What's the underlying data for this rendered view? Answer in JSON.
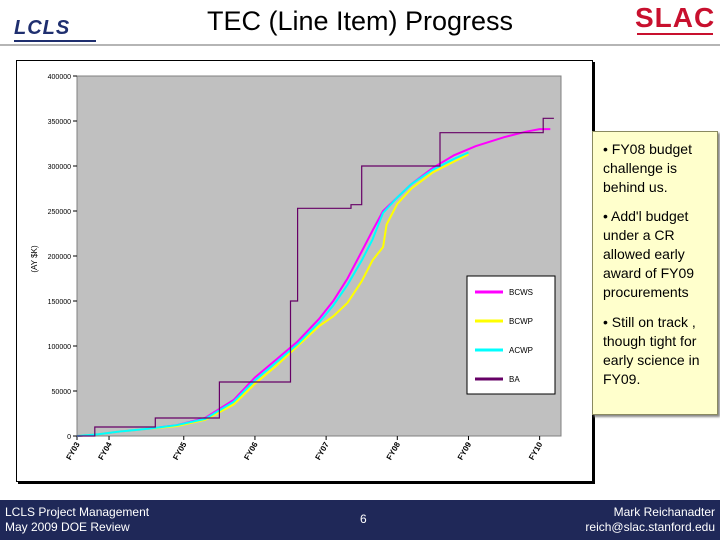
{
  "header": {
    "title": "TEC (Line Item) Progress",
    "left_logo": "LCLS",
    "right_logo": "SLAC"
  },
  "notes": [
    "• FY08 budget challenge is behind us.",
    "• Add'l budget under a CR allowed early award of FY09 procurements",
    "• Still on track , though tight for early science in FY09."
  ],
  "footer": {
    "left_line1": "LCLS Project Management",
    "left_line2": "May 2009 DOE Review",
    "page_number": "6",
    "right_line1": "Mark Reichanadter",
    "right_line2": "reich@slac.stanford.edu"
  },
  "colors": {
    "plot_bg": "#c0c0c0",
    "bcws": "#ff00ff",
    "bcwp": "#ffff00",
    "acwp": "#00ffff",
    "ba": "#660066",
    "footer_bg": "#1f2858"
  },
  "chart_data": {
    "type": "line",
    "title": "",
    "xlabel": "",
    "ylabel": "(AY $K)",
    "ylim": [
      0,
      400000
    ],
    "yticks": [
      "0",
      "50000",
      "100000",
      "150000",
      "200000",
      "250000",
      "300000",
      "350000",
      "400000"
    ],
    "x_tick_labels": [
      "FY03",
      "FY04",
      "FY05",
      "FY06",
      "FY07",
      "FY08",
      "FY09",
      "FY10"
    ],
    "x_tick_positions": [
      2003.0,
      2003.45,
      2004.5,
      2005.5,
      2006.5,
      2007.5,
      2008.5,
      2009.5
    ],
    "xlim": [
      2003.0,
      2009.8
    ],
    "grid": false,
    "legend_position": "right",
    "series": [
      {
        "name": "BCWS",
        "color_key": "bcws",
        "x": [
          2003.0,
          2003.3,
          2003.6,
          2004.0,
          2004.4,
          2004.8,
          2005.2,
          2005.5,
          2005.8,
          2006.1,
          2006.4,
          2006.6,
          2006.8,
          2007.0,
          2007.15,
          2007.3,
          2007.5,
          2007.7,
          2008.0,
          2008.3,
          2008.6,
          2009.0,
          2009.3,
          2009.5,
          2009.65
        ],
        "y": [
          0,
          2000,
          5000,
          8000,
          12000,
          20000,
          40000,
          65000,
          85000,
          105000,
          130000,
          150000,
          175000,
          205000,
          228000,
          250000,
          265000,
          280000,
          298000,
          312000,
          322000,
          332000,
          338000,
          341000,
          341000
        ]
      },
      {
        "name": "BCWP",
        "color_key": "bcwp",
        "x": [
          2003.0,
          2003.3,
          2003.6,
          2004.0,
          2004.4,
          2004.8,
          2005.2,
          2005.5,
          2005.8,
          2006.1,
          2006.4,
          2006.6,
          2006.8,
          2007.0,
          2007.15,
          2007.3,
          2007.35,
          2007.5,
          2007.7,
          2008.0,
          2008.3,
          2008.5
        ],
        "y": [
          0,
          2000,
          5000,
          8000,
          11000,
          18000,
          35000,
          58000,
          78000,
          100000,
          122000,
          133000,
          148000,
          172000,
          195000,
          210000,
          235000,
          258000,
          275000,
          293000,
          305000,
          313000
        ]
      },
      {
        "name": "ACWP",
        "color_key": "acwp",
        "x": [
          2003.0,
          2003.3,
          2003.6,
          2004.0,
          2004.4,
          2004.8,
          2005.2,
          2005.5,
          2005.8,
          2006.1,
          2006.4,
          2006.6,
          2006.8,
          2007.0,
          2007.15,
          2007.3,
          2007.5,
          2007.7,
          2008.0,
          2008.3,
          2008.5
        ],
        "y": [
          0,
          2000,
          5000,
          8000,
          12000,
          19000,
          38000,
          62000,
          82000,
          102000,
          126000,
          145000,
          168000,
          195000,
          218000,
          248000,
          265000,
          280000,
          296000,
          308000,
          315000
        ]
      },
      {
        "name": "BA",
        "color_key": "ba",
        "x": [
          2003.0,
          2003.25,
          2003.25,
          2004.1,
          2004.1,
          2005.0,
          2005.0,
          2006.0,
          2006.0,
          2006.1,
          2006.1,
          2006.85,
          2006.85,
          2007.0,
          2007.0,
          2008.0,
          2008.0,
          2008.1,
          2008.1,
          2009.0,
          2009.0,
          2009.1,
          2009.1,
          2009.55,
          2009.55,
          2009.7
        ],
        "y": [
          0,
          0,
          10000,
          10000,
          20000,
          20000,
          60000,
          60000,
          150000,
          150000,
          253000,
          253000,
          257000,
          257000,
          300000,
          300000,
          300000,
          300000,
          337000,
          337000,
          337000,
          337000,
          337000,
          337000,
          353000,
          353000
        ]
      }
    ]
  }
}
